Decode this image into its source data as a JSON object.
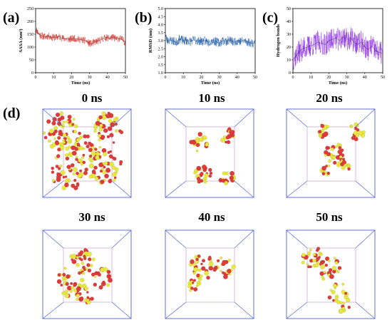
{
  "panels": {
    "a": "(a)",
    "b": "(b)",
    "c": "(c)",
    "d": "(d)"
  },
  "chart_data": [
    {
      "id": "a",
      "type": "line",
      "xlabel": "Time (ns)",
      "ylabel": "SASA (nm²)",
      "xlim": [
        0,
        50
      ],
      "ylim": [
        0,
        250
      ],
      "xticks": [
        0,
        10,
        20,
        30,
        40,
        50
      ],
      "yticks": [
        0,
        50,
        100,
        150,
        200,
        250
      ],
      "color": "#d9281e",
      "series": [
        {
          "x": [
            0,
            1,
            2,
            3,
            5,
            7,
            9,
            11,
            13,
            15,
            17,
            19,
            21,
            23,
            25,
            27,
            28,
            29,
            31,
            33,
            35,
            37,
            39,
            41,
            43,
            45,
            47,
            48,
            49,
            50
          ],
          "values": [
            172,
            160,
            150,
            145,
            140,
            143,
            138,
            137,
            141,
            134,
            132,
            130,
            134,
            131,
            129,
            126,
            125,
            118,
            112,
            120,
            124,
            132,
            137,
            135,
            138,
            132,
            134,
            130,
            125,
            116
          ]
        }
      ]
    },
    {
      "id": "b",
      "type": "line",
      "xlabel": "Time (ns)",
      "ylabel": "RMSD (nm)",
      "xlim": [
        0,
        50
      ],
      "ylim": [
        1.0,
        5.0
      ],
      "xticks": [
        0,
        10,
        20,
        30,
        40,
        50
      ],
      "yticks": [
        "1.0",
        "1.5",
        "2.0",
        "2.5",
        "3.0",
        "3.5",
        "4.0",
        "4.5",
        "5.0"
      ],
      "color": "#1f5fb0",
      "series": [
        {
          "x": [
            0,
            0.5,
            1,
            2,
            4,
            6,
            8,
            10,
            12,
            14,
            16,
            18,
            20,
            22,
            24,
            26,
            28,
            30,
            32,
            34,
            36,
            38,
            40,
            42,
            44,
            46,
            48,
            50
          ],
          "values": [
            3.4,
            3.2,
            3.0,
            3.05,
            3.0,
            2.9,
            3.1,
            3.0,
            3.0,
            2.95,
            3.05,
            3.0,
            2.95,
            3.0,
            2.9,
            3.0,
            2.95,
            2.85,
            3.0,
            2.95,
            3.05,
            2.9,
            3.0,
            2.95,
            3.0,
            2.9,
            2.85,
            2.85
          ]
        }
      ]
    },
    {
      "id": "c",
      "type": "line",
      "xlabel": "Time (ns)",
      "ylabel": "Hydrogen bonds",
      "xlim": [
        0,
        50
      ],
      "ylim": [
        0,
        50
      ],
      "xticks": [
        0,
        10,
        20,
        30,
        40,
        50
      ],
      "yticks": [
        0,
        10,
        20,
        30,
        40,
        50
      ],
      "color": "#8a2be2",
      "series": [
        {
          "x": [
            0,
            2,
            4,
            6,
            8,
            10,
            12,
            14,
            16,
            18,
            20,
            22,
            24,
            26,
            28,
            30,
            32,
            34,
            36,
            38,
            40,
            42,
            44,
            46,
            48,
            50
          ],
          "values": [
            10,
            14,
            17,
            19,
            20,
            21,
            22,
            24,
            23,
            22,
            25,
            26,
            27,
            25,
            28,
            26,
            27,
            24,
            22,
            24,
            20,
            18,
            21,
            17,
            16,
            15
          ]
        }
      ]
    }
  ],
  "snapshots": [
    {
      "label": "0 ns"
    },
    {
      "label": "10 ns"
    },
    {
      "label": "20 ns"
    },
    {
      "label": "30 ns"
    },
    {
      "label": "40 ns"
    },
    {
      "label": "50 ns"
    }
  ],
  "colors": {
    "box": "#5060d8",
    "inner_box": "#c8a0c8",
    "molecule_red": "#e03b3b",
    "molecule_yellow": "#e8e840"
  }
}
